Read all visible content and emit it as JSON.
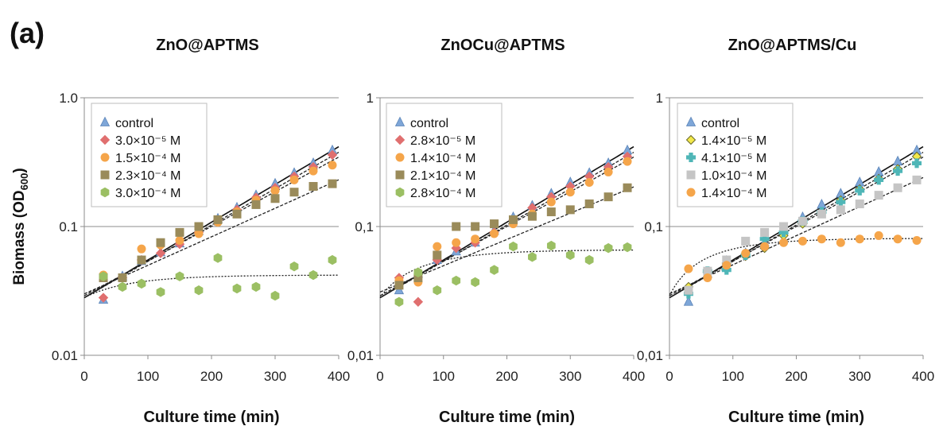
{
  "figure": {
    "panel_label": "(a)",
    "ylabel_main": "Biomass (OD",
    "ylabel_sub": "600",
    "ylabel_close": ")"
  },
  "colors": {
    "control": "#7ea6d8",
    "red": "#e06f6f",
    "orange": "#f5a54a",
    "olive": "#9a8b5a",
    "green": "#9bbf63",
    "yellow": "#f2e84a",
    "teal": "#4fb6b7",
    "grey": "#c5c5c5"
  },
  "chart_data": [
    {
      "type": "scatter",
      "title": "ZnO@APTMS",
      "xlabel": "Culture time (min)",
      "xlim": [
        0,
        400
      ],
      "ylim": [
        0.01,
        1.0
      ],
      "yscale": "log",
      "xticks": [
        "0",
        "100",
        "200",
        "300",
        "400"
      ],
      "yticks": [
        "0.01",
        "0.1",
        "1.0"
      ],
      "legend": "top-left",
      "x": [
        30,
        60,
        90,
        120,
        150,
        180,
        210,
        240,
        270,
        300,
        330,
        360,
        390
      ],
      "series": [
        {
          "name": "control",
          "marker": "triangle",
          "color": "#7ea6d8",
          "values": [
            0.027,
            0.041,
            0.054,
            0.063,
            0.074,
            0.092,
            0.115,
            0.14,
            0.175,
            0.215,
            0.26,
            0.31,
            0.39
          ],
          "trend": {
            "kind": "exp",
            "a": 0.028,
            "b": 0.00675,
            "style": "solid"
          }
        },
        {
          "name": "3.0×10⁻⁵ M",
          "marker": "diamond",
          "color": "#e06f6f",
          "values": [
            0.028,
            0.04,
            0.055,
            0.062,
            0.073,
            0.09,
            0.112,
            0.135,
            0.168,
            0.2,
            0.245,
            0.29,
            0.36
          ],
          "trend": {
            "kind": "exp",
            "a": 0.028,
            "b": 0.0065,
            "style": "dashed"
          }
        },
        {
          "name": "1.5×10⁻⁴ M",
          "marker": "circle",
          "color": "#f5a54a",
          "values": [
            0.042,
            0.04,
            0.067,
            0.072,
            0.078,
            0.088,
            0.108,
            0.13,
            0.16,
            0.19,
            0.23,
            0.27,
            0.3
          ],
          "trend": {
            "kind": "exp",
            "a": 0.029,
            "b": 0.0062,
            "style": "dashed"
          }
        },
        {
          "name": "2.3×10⁻⁴ M",
          "marker": "square",
          "color": "#9a8b5a",
          "values": [
            0.04,
            0.04,
            0.055,
            0.075,
            0.09,
            0.1,
            0.113,
            0.125,
            0.148,
            0.165,
            0.185,
            0.205,
            0.215
          ],
          "trend": {
            "kind": "exp",
            "a": 0.03,
            "b": 0.0051,
            "style": "dashed"
          }
        },
        {
          "name": "3.0×10⁻⁴ M",
          "marker": "hexagon",
          "color": "#9bbf63",
          "values": [
            0.041,
            0.034,
            0.036,
            0.031,
            0.041,
            0.032,
            0.057,
            0.033,
            0.034,
            0.029,
            0.049,
            0.042,
            0.055
          ],
          "trend": {
            "kind": "sat",
            "y0": 0.028,
            "ymax": 0.042,
            "k": 0.012,
            "style": "dotted"
          }
        }
      ]
    },
    {
      "type": "scatter",
      "title": "ZnOCu@APTMS",
      "xlabel": "Culture time (min)",
      "xlim": [
        0,
        400
      ],
      "ylim": [
        0.01,
        1.0
      ],
      "yscale": "log",
      "xticks": [
        "0",
        "100",
        "200",
        "300",
        "400"
      ],
      "yticks": [
        "0,01",
        "0,1",
        "1"
      ],
      "legend": "top-left",
      "x": [
        30,
        60,
        90,
        120,
        150,
        180,
        210,
        240,
        270,
        300,
        330,
        360,
        390
      ],
      "series": [
        {
          "name": "control",
          "marker": "triangle",
          "color": "#7ea6d8",
          "values": [
            0.032,
            0.043,
            0.055,
            0.064,
            0.075,
            0.093,
            0.118,
            0.145,
            0.18,
            0.22,
            0.26,
            0.31,
            0.39
          ],
          "trend": {
            "kind": "exp",
            "a": 0.028,
            "b": 0.00675,
            "style": "solid"
          }
        },
        {
          "name": "2.8×10⁻⁵ M",
          "marker": "diamond",
          "color": "#e06f6f",
          "values": [
            0.04,
            0.026,
            0.055,
            0.068,
            0.075,
            0.09,
            0.112,
            0.14,
            0.17,
            0.205,
            0.245,
            0.29,
            0.35
          ],
          "trend": {
            "kind": "exp",
            "a": 0.028,
            "b": 0.0065,
            "style": "dashed"
          }
        },
        {
          "name": "1.4×10⁻⁴ M",
          "marker": "circle",
          "color": "#f5a54a",
          "values": [
            0.038,
            0.037,
            0.07,
            0.075,
            0.08,
            0.088,
            0.105,
            0.125,
            0.155,
            0.185,
            0.22,
            0.265,
            0.32
          ],
          "trend": {
            "kind": "exp",
            "a": 0.029,
            "b": 0.0062,
            "style": "dashed"
          }
        },
        {
          "name": "2.1×10⁻⁴ M",
          "marker": "square",
          "color": "#9a8b5a",
          "values": [
            0.035,
            0.04,
            0.06,
            0.1,
            0.1,
            0.105,
            0.113,
            0.12,
            0.13,
            0.135,
            0.15,
            0.17,
            0.2
          ],
          "trend": {
            "kind": "exp",
            "a": 0.031,
            "b": 0.0047,
            "style": "dashed"
          }
        },
        {
          "name": "2.8×10⁻⁴ M",
          "marker": "hexagon",
          "color": "#9bbf63",
          "values": [
            0.026,
            0.044,
            0.032,
            0.038,
            0.037,
            0.046,
            0.07,
            0.058,
            0.071,
            0.06,
            0.055,
            0.068,
            0.069
          ],
          "trend": {
            "kind": "sat",
            "y0": 0.028,
            "ymax": 0.066,
            "k": 0.012,
            "style": "dotted"
          }
        }
      ]
    },
    {
      "type": "scatter",
      "title": "ZnO@APTMS/Cu",
      "xlabel": "Culture time (min)",
      "xlim": [
        0,
        400
      ],
      "ylim": [
        0.01,
        1.0
      ],
      "yscale": "log",
      "xticks": [
        "0",
        "100",
        "200",
        "300",
        "400"
      ],
      "yticks": [
        "0,01",
        "0,1",
        "1"
      ],
      "legend": "top-left",
      "x": [
        30,
        60,
        90,
        120,
        150,
        180,
        210,
        240,
        270,
        300,
        330,
        360,
        390
      ],
      "series": [
        {
          "name": "control",
          "marker": "triangle",
          "color": "#7ea6d8",
          "values": [
            0.026,
            0.043,
            0.054,
            0.062,
            0.075,
            0.093,
            0.118,
            0.148,
            0.18,
            0.22,
            0.265,
            0.32,
            0.39
          ],
          "trend": {
            "kind": "exp",
            "a": 0.028,
            "b": 0.00675,
            "style": "solid"
          }
        },
        {
          "name": "1.4×10⁻⁵ M",
          "marker": "diamond",
          "color": "#f2e84a",
          "values": [
            0.034,
            0.044,
            0.052,
            0.059,
            0.068,
            0.085,
            0.105,
            0.128,
            0.16,
            0.195,
            0.235,
            0.28,
            0.35
          ],
          "trend": {
            "kind": "exp",
            "a": 0.028,
            "b": 0.0065,
            "style": "dashed"
          }
        },
        {
          "name": "4.1×10⁻⁵ M",
          "marker": "cross",
          "color": "#4fb6b7",
          "values": [
            0.03,
            0.045,
            0.046,
            0.06,
            0.08,
            0.09,
            0.11,
            0.13,
            0.155,
            0.19,
            0.23,
            0.27,
            0.31
          ],
          "trend": {
            "kind": "exp",
            "a": 0.029,
            "b": 0.0062,
            "style": "dashed"
          }
        },
        {
          "name": "1.0×10⁻⁴ M",
          "marker": "square",
          "color": "#c5c5c5",
          "values": [
            0.032,
            0.045,
            0.055,
            0.077,
            0.09,
            0.1,
            0.11,
            0.125,
            0.135,
            0.15,
            0.175,
            0.2,
            0.23
          ],
          "trend": {
            "kind": "exp",
            "a": 0.03,
            "b": 0.0052,
            "style": "dashed"
          }
        },
        {
          "name": "1.4×10⁻⁴ M",
          "marker": "circle",
          "color": "#f5a54a",
          "values": [
            0.047,
            0.04,
            0.05,
            0.062,
            0.07,
            0.075,
            0.077,
            0.08,
            0.075,
            0.08,
            0.085,
            0.08,
            0.078
          ],
          "trend": {
            "kind": "sat",
            "y0": 0.029,
            "ymax": 0.081,
            "k": 0.013,
            "style": "dotted"
          }
        }
      ]
    }
  ]
}
